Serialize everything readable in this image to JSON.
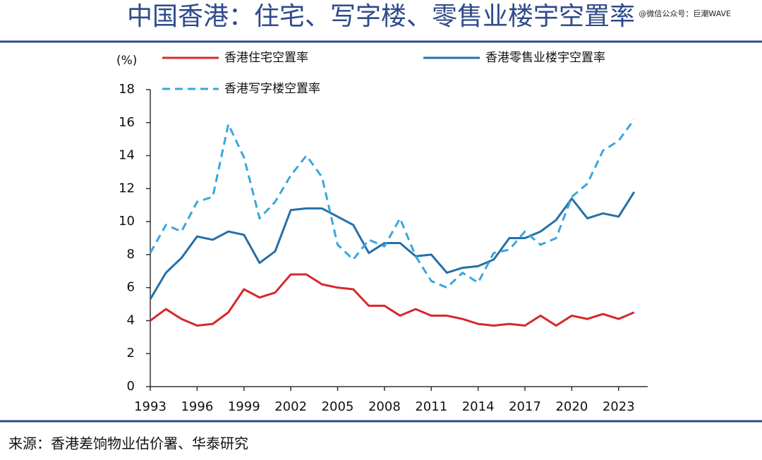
{
  "chart_data": {
    "type": "line",
    "title": "中国香港：住宅、写字楼、零售业楼宇空置率",
    "watermark": "@微信公众号：巨潮WAVE",
    "y_label": "(%)",
    "source": "来源：香港差饷物业估价署、华泰研究",
    "x": [
      1993,
      1994,
      1995,
      1996,
      1997,
      1998,
      1999,
      2000,
      2001,
      2002,
      2003,
      2004,
      2005,
      2006,
      2007,
      2008,
      2009,
      2010,
      2011,
      2012,
      2013,
      2014,
      2015,
      2016,
      2017,
      2018,
      2019,
      2020,
      2021,
      2022,
      2023,
      2024
    ],
    "series": [
      {
        "name": "香港住宅空置率",
        "color": "#d7282a",
        "style": "solid",
        "values": [
          4.0,
          4.7,
          4.1,
          3.7,
          3.8,
          4.5,
          5.9,
          5.4,
          5.7,
          6.8,
          6.8,
          6.2,
          6.0,
          5.9,
          4.9,
          4.9,
          4.3,
          4.7,
          4.3,
          4.3,
          4.1,
          3.8,
          3.7,
          3.8,
          3.7,
          4.3,
          3.7,
          4.3,
          4.1,
          4.4,
          4.1,
          4.5
        ]
      },
      {
        "name": "香港零售业楼宇空置率",
        "color": "#2470a8",
        "style": "solid",
        "values": [
          5.3,
          6.9,
          7.8,
          9.1,
          8.9,
          9.4,
          9.2,
          7.5,
          8.2,
          10.7,
          10.8,
          10.8,
          10.3,
          9.8,
          8.1,
          8.7,
          8.7,
          7.9,
          8.0,
          6.9,
          7.2,
          7.3,
          7.7,
          9.0,
          9.0,
          9.4,
          10.1,
          11.4,
          10.2,
          10.5,
          10.3,
          11.8
        ]
      },
      {
        "name": "香港写字楼空置率",
        "color": "#3aa6dc",
        "style": "dashed",
        "values": [
          8.1,
          9.8,
          9.4,
          11.2,
          11.5,
          15.9,
          13.9,
          10.2,
          11.2,
          12.8,
          14.0,
          12.7,
          8.6,
          7.7,
          8.9,
          8.5,
          10.2,
          7.9,
          6.4,
          6.0,
          6.9,
          6.3,
          8.1,
          8.3,
          9.4,
          8.6,
          9.0,
          11.5,
          12.3,
          14.3,
          14.9,
          16.2
        ]
      }
    ],
    "xlim": [
      1993,
      2025
    ],
    "xticks": [
      1993,
      1996,
      1999,
      2002,
      2005,
      2008,
      2011,
      2014,
      2017,
      2020,
      2023
    ],
    "ylim": [
      0,
      18
    ],
    "yticks": [
      0,
      2,
      4,
      6,
      8,
      10,
      12,
      14,
      16,
      18
    ],
    "legend": "top"
  }
}
